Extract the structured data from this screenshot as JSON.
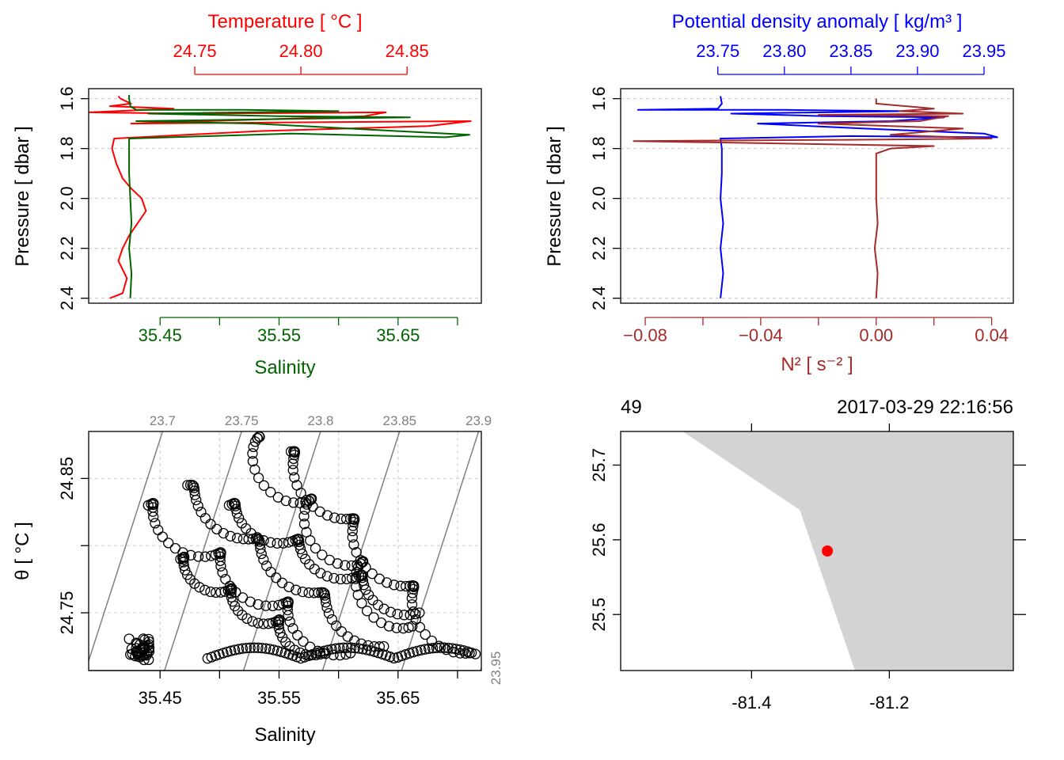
{
  "chart_data": [
    {
      "type": "line",
      "panel": "profile-temperature-salinity",
      "top_axis_label": "Temperature [ °C ]",
      "top_axis_color": "#ff0000",
      "top_ticks": [
        "24.75",
        "24.80",
        "24.85"
      ],
      "top_range": [
        24.7,
        24.885
      ],
      "bottom_axis_label": "Salinity",
      "bottom_axis_color": "#006400",
      "bottom_ticks": [
        "35.45",
        "35.55",
        "35.65"
      ],
      "bottom_range": [
        35.39,
        35.72
      ],
      "ylabel": "Pressure [ dbar ]",
      "y_ticks": [
        "1.6",
        "1.8",
        "2.0",
        "2.2",
        "2.4"
      ],
      "y_range": [
        1.56,
        2.42
      ],
      "y_reversed": true,
      "grid": "horizontal-dashed",
      "series": [
        {
          "name": "",
          "axis": "top",
          "color": "#ff0000",
          "points": [
            [
              24.71,
              2.4
            ],
            [
              24.716,
              2.38
            ],
            [
              24.718,
              2.32
            ],
            [
              24.714,
              2.25
            ],
            [
              24.716,
              2.2
            ],
            [
              24.719,
              2.15
            ],
            [
              24.723,
              2.1
            ],
            [
              24.727,
              2.05
            ],
            [
              24.725,
              2.0
            ],
            [
              24.72,
              1.96
            ],
            [
              24.716,
              1.92
            ],
            [
              24.713,
              1.86
            ],
            [
              24.711,
              1.8
            ],
            [
              24.712,
              1.76
            ],
            [
              24.78,
              1.73
            ],
            [
              24.86,
              1.71
            ],
            [
              24.88,
              1.69
            ],
            [
              24.8,
              1.695
            ],
            [
              24.72,
              1.7
            ],
            [
              24.83,
              1.67
            ],
            [
              24.84,
              1.655
            ],
            [
              24.75,
              1.66
            ],
            [
              24.7,
              1.655
            ],
            [
              24.74,
              1.64
            ],
            [
              24.71,
              1.63
            ],
            [
              24.72,
              1.62
            ],
            [
              24.715,
              1.6
            ],
            [
              24.714,
              1.59
            ]
          ]
        },
        {
          "name": "",
          "axis": "bottom",
          "color": "#006400",
          "points": [
            [
              35.425,
              2.4
            ],
            [
              35.426,
              2.3
            ],
            [
              35.424,
              2.2
            ],
            [
              35.426,
              2.1
            ],
            [
              35.425,
              2.0
            ],
            [
              35.424,
              1.9
            ],
            [
              35.424,
              1.8
            ],
            [
              35.424,
              1.76
            ],
            [
              35.56,
              1.74
            ],
            [
              35.69,
              1.755
            ],
            [
              35.71,
              1.745
            ],
            [
              35.65,
              1.73
            ],
            [
              35.53,
              1.7
            ],
            [
              35.43,
              1.69
            ],
            [
              35.58,
              1.68
            ],
            [
              35.66,
              1.675
            ],
            [
              35.55,
              1.67
            ],
            [
              35.44,
              1.66
            ],
            [
              35.6,
              1.65
            ],
            [
              35.52,
              1.645
            ],
            [
              35.43,
              1.645
            ],
            [
              35.425,
              1.63
            ],
            [
              35.424,
              1.6
            ],
            [
              35.424,
              1.585
            ]
          ]
        }
      ]
    },
    {
      "type": "line",
      "panel": "profile-density-n2",
      "top_axis_label": "Potential density anomaly [ kg/m³ ]",
      "top_axis_color": "#0000ff",
      "top_ticks": [
        "23.75",
        "23.80",
        "23.85",
        "23.90",
        "23.95"
      ],
      "top_range": [
        23.677,
        23.972
      ],
      "bottom_axis_label": "N² [ s⁻² ]",
      "bottom_axis_color": "#a52a2a",
      "bottom_ticks": [
        "−0.08",
        "−0.04",
        "0.00",
        "0.04"
      ],
      "bottom_range": [
        -0.0885,
        0.0475
      ],
      "ylabel": "Pressure [ dbar ]",
      "y_ticks": [
        "1.6",
        "1.8",
        "2.0",
        "2.2",
        "2.4"
      ],
      "y_range": [
        1.56,
        2.42
      ],
      "y_reversed": true,
      "grid": "horizontal-dashed",
      "series": [
        {
          "name": "",
          "axis": "top",
          "color": "#0000ff",
          "points": [
            [
              23.752,
              2.4
            ],
            [
              23.754,
              2.3
            ],
            [
              23.752,
              2.2
            ],
            [
              23.754,
              2.1
            ],
            [
              23.752,
              2.0
            ],
            [
              23.753,
              1.9
            ],
            [
              23.753,
              1.8
            ],
            [
              23.752,
              1.76
            ],
            [
              23.85,
              1.75
            ],
            [
              23.96,
              1.755
            ],
            [
              23.95,
              1.74
            ],
            [
              23.86,
              1.72
            ],
            [
              23.78,
              1.7
            ],
            [
              23.88,
              1.69
            ],
            [
              23.92,
              1.675
            ],
            [
              23.83,
              1.67
            ],
            [
              23.76,
              1.66
            ],
            [
              23.89,
              1.65
            ],
            [
              23.8,
              1.645
            ],
            [
              23.69,
              1.645
            ],
            [
              23.75,
              1.64
            ],
            [
              23.753,
              1.62
            ],
            [
              23.752,
              1.59
            ]
          ]
        },
        {
          "name": "",
          "axis": "bottom",
          "color": "#a52a2a",
          "points": [
            [
              0.0,
              2.4
            ],
            [
              0.0005,
              2.3
            ],
            [
              -0.0005,
              2.2
            ],
            [
              0.0005,
              2.1
            ],
            [
              0.0,
              2.0
            ],
            [
              0.0,
              1.9
            ],
            [
              0.0,
              1.82
            ],
            [
              0.005,
              1.8
            ],
            [
              0.02,
              1.79
            ],
            [
              -0.084,
              1.77
            ],
            [
              -0.01,
              1.765
            ],
            [
              0.04,
              1.76
            ],
            [
              0.005,
              1.745
            ],
            [
              0.03,
              1.72
            ],
            [
              -0.02,
              1.7
            ],
            [
              0.015,
              1.69
            ],
            [
              0.025,
              1.67
            ],
            [
              -0.02,
              1.665
            ],
            [
              0.03,
              1.66
            ],
            [
              0.008,
              1.65
            ],
            [
              0.02,
              1.64
            ],
            [
              0.0,
              1.62
            ],
            [
              0.0,
              1.6
            ]
          ]
        }
      ]
    },
    {
      "type": "scatter",
      "panel": "ts-diagram",
      "xlabel": "Salinity",
      "ylabel": "θ [ °C ]",
      "x_ticks": [
        "35.45",
        "35.55",
        "35.65"
      ],
      "x_range": [
        35.39,
        35.72
      ],
      "y_ticks": [
        "24.75",
        "24.85"
      ],
      "y_range": [
        24.707,
        24.885
      ],
      "isopycnal_labels": [
        "23.7",
        "23.75",
        "23.8",
        "23.85",
        "23.9",
        "23.95"
      ],
      "marker": "open-circle",
      "grid": "dashed"
    },
    {
      "type": "map",
      "panel": "station-map",
      "station_label": "49",
      "date_label": "2017-03-29 22:16:56",
      "x_ticks": [
        "-81.4",
        "-81.2"
      ],
      "x_range": [
        -81.59,
        -81.02
      ],
      "y_ticks": [
        "25.5",
        "25.6",
        "25.7"
      ],
      "y_range": [
        25.425,
        25.745
      ],
      "land_color": "#d3d3d3",
      "station_color": "#ff0000",
      "station": {
        "lon": -81.29,
        "lat": 25.585
      },
      "coastline": [
        [
          -81.5,
          25.745
        ],
        [
          -81.33,
          25.64
        ],
        [
          -81.25,
          25.425
        ]
      ]
    }
  ]
}
